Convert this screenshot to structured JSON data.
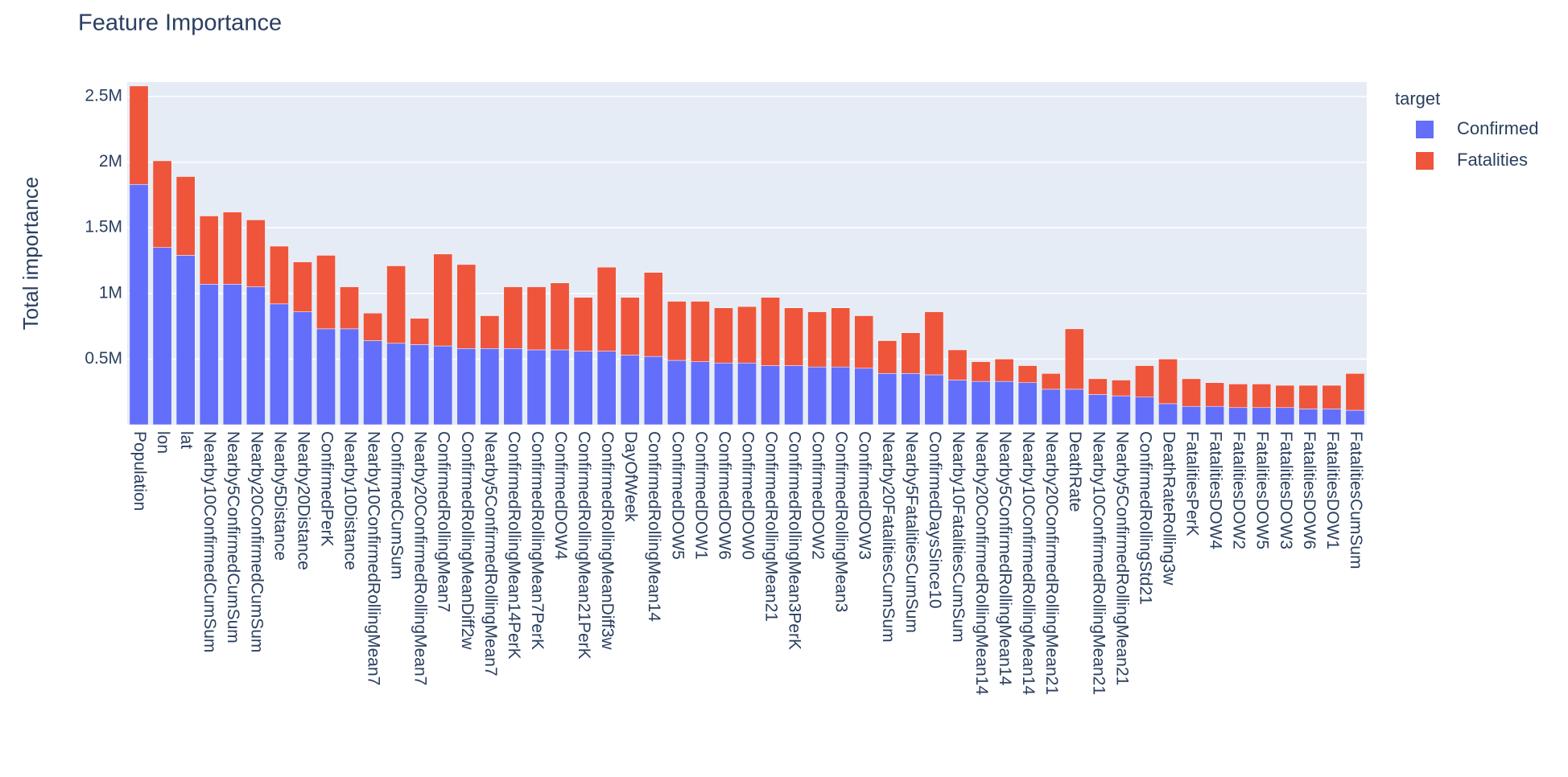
{
  "chart_data": {
    "type": "stacked_bar",
    "title": "Feature Importance",
    "y_label": "Total importance",
    "legend_title": "target",
    "categories": [
      "Population",
      "lon",
      "lat",
      "Nearby10ConfirmedCumSum",
      "Nearby5ConfirmedCumSum",
      "Nearby20ConfirmedCumSum",
      "Nearby5Distance",
      "Nearby20Distance",
      "ConfirmedPerK",
      "Nearby10Distance",
      "Nearby10ConfirmedRollingMean7",
      "ConfirmedCumSum",
      "Nearby20ConfirmedRollingMean7",
      "ConfirmedRollingMean7",
      "ConfirmedRollingMeanDiff2w",
      "Nearby5ConfirmedRollingMean7",
      "ConfirmedRollingMean14PerK",
      "ConfirmedRollingMean7PerK",
      "ConfirmedDOW4",
      "ConfirmedRollingMean21PerK",
      "ConfirmedRollingMeanDiff3w",
      "DayOfWeek",
      "ConfirmedRollingMean14",
      "ConfirmedDOW5",
      "ConfirmedDOW1",
      "ConfirmedDOW6",
      "ConfirmedDOW0",
      "ConfirmedRollingMean21",
      "ConfirmedRollingMean3PerK",
      "ConfirmedDOW2",
      "ConfirmedRollingMean3",
      "ConfirmedDOW3",
      "Nearby20FatalitiesCumSum",
      "Nearby5FatalitiesCumSum",
      "ConfirmedDaysSince10",
      "Nearby10FatalitiesCumSum",
      "Nearby20ConfirmedRollingMean14",
      "Nearby5ConfirmedRollingMean14",
      "Nearby10ConfirmedRollingMean14",
      "Nearby20ConfirmedRollingMean21",
      "DeathRate",
      "Nearby10ConfirmedRollingMean21",
      "Nearby5ConfirmedRollingMean21",
      "ConfirmedRollingStd21",
      "DeathRateRolling3w",
      "FatalitiesPerK",
      "FatalitiesDOW4",
      "FatalitiesDOW2",
      "FatalitiesDOW5",
      "FatalitiesDOW3",
      "FatalitiesDOW6",
      "FatalitiesDOW1",
      "FatalitiesCumSum"
    ],
    "series": [
      {
        "name": "Confirmed",
        "color": "#636efa",
        "values": [
          1830000,
          1350000,
          1290000,
          1070000,
          1070000,
          1050000,
          920000,
          860000,
          730000,
          730000,
          640000,
          620000,
          610000,
          600000,
          580000,
          580000,
          580000,
          570000,
          570000,
          560000,
          560000,
          530000,
          520000,
          490000,
          480000,
          470000,
          470000,
          450000,
          450000,
          440000,
          440000,
          430000,
          390000,
          390000,
          380000,
          340000,
          330000,
          330000,
          320000,
          270000,
          270000,
          230000,
          220000,
          210000,
          160000,
          140000,
          140000,
          130000,
          130000,
          130000,
          120000,
          120000,
          110000
        ]
      },
      {
        "name": "Fatalities",
        "color": "#ef553b",
        "values": [
          750000,
          660000,
          600000,
          520000,
          550000,
          510000,
          440000,
          380000,
          560000,
          320000,
          210000,
          590000,
          200000,
          700000,
          640000,
          250000,
          470000,
          480000,
          510000,
          410000,
          640000,
          440000,
          640000,
          450000,
          460000,
          420000,
          430000,
          520000,
          440000,
          420000,
          450000,
          400000,
          250000,
          310000,
          480000,
          230000,
          150000,
          170000,
          130000,
          120000,
          460000,
          120000,
          120000,
          240000,
          340000,
          210000,
          180000,
          180000,
          180000,
          170000,
          180000,
          180000,
          280000
        ]
      }
    ],
    "ylim": [
      0,
      2610000
    ],
    "yticks": [
      {
        "value": 500000,
        "label": "0.5M"
      },
      {
        "value": 1000000,
        "label": "1M"
      },
      {
        "value": 1500000,
        "label": "1.5M"
      },
      {
        "value": 2000000,
        "label": "2M"
      },
      {
        "value": 2500000,
        "label": "2.5M"
      }
    ],
    "grid": true,
    "legend_position": "right"
  }
}
